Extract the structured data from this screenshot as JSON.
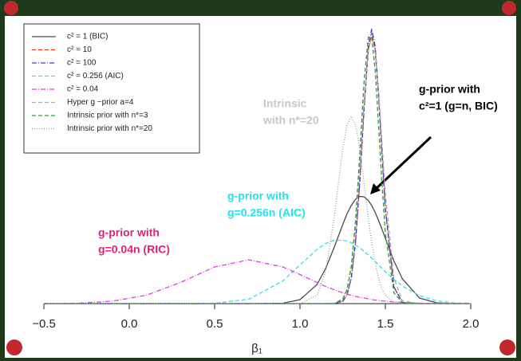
{
  "chart_data": {
    "type": "line",
    "xlabel": "β₁",
    "x": [
      -0.5,
      -0.3,
      -0.1,
      0.1,
      0.3,
      0.5,
      0.7,
      0.9,
      1.0,
      1.1,
      1.15,
      1.2,
      1.25,
      1.275,
      1.3,
      1.325,
      1.35,
      1.375,
      1.4,
      1.42,
      1.44,
      1.46,
      1.48,
      1.5,
      1.55,
      1.6,
      1.7,
      1.8,
      1.9,
      2.0
    ],
    "xlim": [
      -0.5,
      2.0
    ],
    "xticks": [
      {
        "value": -0.5,
        "label": "−0.5"
      },
      {
        "value": 0,
        "label": "0.0"
      },
      0.5,
      {
        "value": 1,
        "label": "1.0"
      },
      1.5,
      {
        "value": 2,
        "label": "2.0"
      }
    ],
    "ylim": [
      0,
      7
    ],
    "legend": "upper left",
    "series": [
      {
        "name": "c² = 1 (BIC)",
        "color": "#4a4a4a",
        "linestyle": "solid",
        "values": [
          0,
          0,
          0,
          0,
          0,
          0,
          0,
          0.01,
          0.1,
          0.48,
          0.88,
          1.41,
          1.98,
          2.25,
          2.46,
          2.62,
          2.69,
          2.68,
          2.59,
          2.46,
          2.29,
          2.09,
          1.87,
          1.64,
          1.07,
          0.62,
          0.14,
          0.02,
          0,
          0
        ]
      },
      {
        "name": "c² = 10",
        "color": "#e8392f",
        "linestyle": "dashed",
        "values": [
          0,
          0,
          0,
          0,
          0,
          0,
          0,
          0,
          0,
          0,
          0,
          0,
          0.06,
          0.21,
          0.63,
          1.53,
          3.03,
          4.86,
          6.36,
          6.8,
          6.36,
          5.22,
          3.75,
          2.36,
          0.41,
          0.03,
          0,
          0,
          0,
          0
        ]
      },
      {
        "name": "c² = 100",
        "color": "#3a3ac8",
        "linestyle": "dotdash",
        "values": [
          0,
          0,
          0,
          0,
          0,
          0,
          0,
          0,
          0,
          0,
          0,
          0,
          0.06,
          0.21,
          0.64,
          1.55,
          3.07,
          4.93,
          6.46,
          6.9,
          6.46,
          5.3,
          3.81,
          2.39,
          0.42,
          0.03,
          0,
          0,
          0,
          0
        ]
      },
      {
        "name": "c² = 0.256 (AIC)",
        "color": "#33dde8",
        "linestyle": "dashed",
        "values": [
          0,
          0,
          0,
          0,
          0,
          0.01,
          0.11,
          0.57,
          0.97,
          1.36,
          1.51,
          1.59,
          1.59,
          1.57,
          1.53,
          1.47,
          1.4,
          1.31,
          1.22,
          1.14,
          1.06,
          0.97,
          0.89,
          0.8,
          0.61,
          0.44,
          0.2,
          0.07,
          0.02,
          0.01
        ]
      },
      {
        "name": "c² = 0.04",
        "color": "#e040e0",
        "linestyle": "dotdash",
        "values": [
          0,
          0.01,
          0.06,
          0.21,
          0.53,
          0.92,
          1.1,
          0.92,
          0.73,
          0.53,
          0.43,
          0.35,
          0.27,
          0.24,
          0.21,
          0.18,
          0.16,
          0.14,
          0.12,
          0.1,
          0.09,
          0.08,
          0.07,
          0.06,
          0.04,
          0.03,
          0.01,
          0,
          0,
          0
        ]
      },
      {
        "name": "Hyper g −prior a=4",
        "color": "#aaaaaa",
        "linestyle": "dashed",
        "values": [
          0,
          0,
          0,
          0,
          0,
          0,
          0,
          0,
          0,
          0,
          0,
          0.01,
          0.12,
          0.36,
          0.9,
          1.92,
          3.4,
          5.06,
          6.34,
          6.7,
          6.34,
          5.36,
          4.07,
          2.75,
          0.64,
          0.07,
          0,
          0,
          0,
          0
        ]
      },
      {
        "name": "Intrinsic prior with n*=3",
        "color": "#2aa02a",
        "linestyle": "dashed",
        "values": [
          0,
          0,
          0,
          0,
          0,
          0,
          0,
          0,
          0,
          0,
          0,
          0,
          0.1,
          0.33,
          0.92,
          2.07,
          3.75,
          5.56,
          6.69,
          6.69,
          5.86,
          4.5,
          3.03,
          1.78,
          0.27,
          0.02,
          0,
          0,
          0,
          0
        ]
      },
      {
        "name": "Intrinsic prior with n*=20",
        "color": "#999999",
        "linestyle": "dotted",
        "values": [
          0,
          0,
          0,
          0,
          0,
          0,
          0,
          0,
          0,
          0.21,
          0.81,
          2.15,
          3.87,
          4.48,
          4.7,
          4.48,
          3.87,
          3.03,
          2.15,
          1.53,
          1.02,
          0.64,
          0.37,
          0.21,
          0.04,
          0,
          0,
          0,
          0,
          0
        ]
      }
    ],
    "annotations": [
      {
        "lines": [
          "g-prior with",
          "c²=1 (g=n, BIC)"
        ],
        "color": "#000000"
      },
      {
        "lines": [
          "Intrinsic",
          "with n*=20"
        ],
        "color": "#c8c8c8"
      },
      {
        "lines": [
          "g-prior with",
          "g=0.256n (AIC)"
        ],
        "color": "#22e0ee"
      },
      {
        "lines": [
          "g-prior with",
          "g=0.04n (RIC)"
        ],
        "color": "#e0207a"
      }
    ]
  }
}
